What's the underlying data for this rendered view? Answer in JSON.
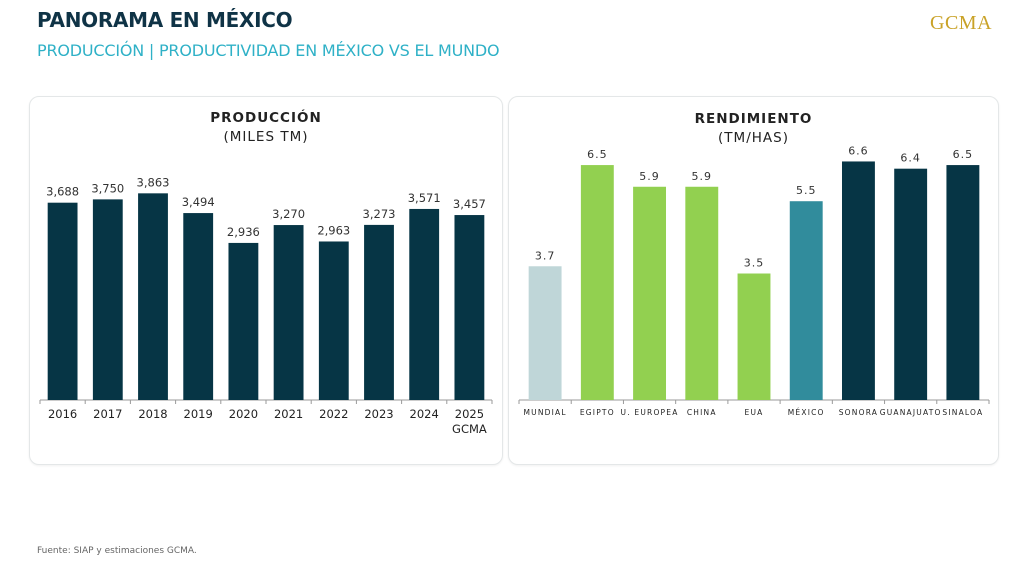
{
  "header": {
    "title": "PANORAMA EN MÉXICO",
    "subtitle": "PRODUCCIÓN | PRODUCTIVIDAD EN MÉXICO VS EL MUNDO",
    "logo": "GCMA"
  },
  "footer": {
    "source": "Fuente: SIAP y estimaciones GCMA."
  },
  "colors": {
    "title": "#0f3346",
    "subtitle": "#2fb1c7",
    "logo": "#c9a227",
    "dark_bar": "#063545",
    "green_bar": "#92d050",
    "mexico_bar": "#318c9c",
    "world_bar": "#bfd6d8"
  },
  "chart_data": [
    {
      "type": "bar",
      "title": "PRODUCCIÓN",
      "subtitle": "(MILES TM)",
      "categories": [
        "2016",
        "2017",
        "2018",
        "2019",
        "2020",
        "2021",
        "2022",
        "2023",
        "2024",
        "2025"
      ],
      "category_sublabels": [
        "",
        "",
        "",
        "",
        "",
        "",
        "",
        "",
        "",
        "GCMA"
      ],
      "values": [
        3688,
        3750,
        3863,
        3494,
        2936,
        3270,
        2963,
        3273,
        3571,
        3457
      ],
      "value_labels": [
        "3,688",
        "3,750",
        "3,863",
        "3,494",
        "2,936",
        "3,270",
        "2,963",
        "3,273",
        "3,571",
        "3,457"
      ],
      "bar_colors": [
        "#063545",
        "#063545",
        "#063545",
        "#063545",
        "#063545",
        "#063545",
        "#063545",
        "#063545",
        "#063545",
        "#063545"
      ],
      "xlabel": "",
      "ylabel": "",
      "ylim": [
        0,
        4000
      ],
      "grid": false,
      "legend": "none"
    },
    {
      "type": "bar",
      "title": "RENDIMIENTO",
      "subtitle": "(TM/HAS)",
      "categories": [
        "MUNDIAL",
        "EGIPTO",
        "U. EUROPEA",
        "CHINA",
        "EUA",
        "MÉXICO",
        "SONORA",
        "GUANAJUATO",
        "SINALOA"
      ],
      "values": [
        3.7,
        6.5,
        5.9,
        5.9,
        3.5,
        5.5,
        6.6,
        6.4,
        6.5
      ],
      "value_labels": [
        "3.7",
        "6.5",
        "5.9",
        "5.9",
        "3.5",
        "5.5",
        "6.6",
        "6.4",
        "6.5"
      ],
      "bar_colors": [
        "#bfd6d8",
        "#92d050",
        "#92d050",
        "#92d050",
        "#92d050",
        "#318c9c",
        "#063545",
        "#063545",
        "#063545"
      ],
      "xlabel": "",
      "ylabel": "",
      "ylim": [
        0,
        7
      ],
      "grid": false,
      "legend": "none"
    }
  ]
}
